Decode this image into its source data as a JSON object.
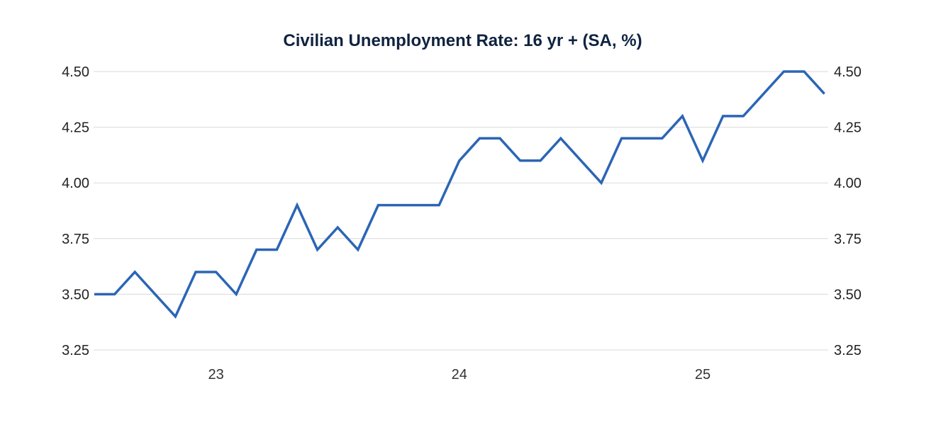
{
  "chart_data": {
    "type": "line",
    "title": "Civilian Unemployment Rate: 16 yr + (SA, %)",
    "xlabel": "",
    "ylabel": "",
    "ylim": [
      3.25,
      4.5
    ],
    "yticks": [
      "3.25",
      "3.50",
      "3.75",
      "4.00",
      "4.25",
      "4.50"
    ],
    "ytick_values": [
      3.25,
      3.5,
      3.75,
      4.0,
      4.25,
      4.5
    ],
    "xtick_labels": [
      "23",
      "24",
      "25"
    ],
    "xtick_index": [
      6,
      18,
      30
    ],
    "grid": true,
    "series": [
      {
        "name": "Civilian Unemployment Rate: 16 yr +",
        "color": "#2b65b6",
        "values": [
          3.5,
          3.5,
          3.6,
          3.5,
          3.4,
          3.6,
          3.6,
          3.5,
          3.7,
          3.7,
          3.9,
          3.7,
          3.8,
          3.7,
          3.9,
          3.9,
          3.9,
          3.9,
          4.1,
          4.2,
          4.2,
          4.1,
          4.1,
          4.2,
          4.1,
          4.0,
          4.2,
          4.2,
          4.2,
          4.3,
          4.1,
          4.3,
          4.3,
          4.4,
          4.5,
          4.5,
          4.4
        ]
      }
    ]
  }
}
